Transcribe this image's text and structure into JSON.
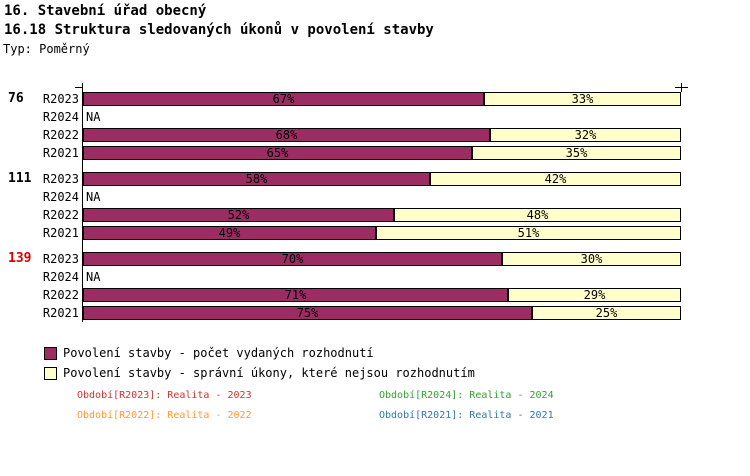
{
  "header": {
    "title_line1": "16. Stavební úřad obecný",
    "title_line2": "16.18 Struktura sledovaných úkonů v povolení stavby",
    "subtitle": "Typ: Poměrný"
  },
  "chart_data": {
    "type": "bar",
    "orientation": "horizontal",
    "stacked": true,
    "unit": "%",
    "x_range": [
      0,
      100
    ],
    "grid": false,
    "na_label": "NA",
    "series": [
      {
        "name": "Povolení stavby - počet vydaných rozhodnutí",
        "color": "#9C2D64"
      },
      {
        "name": "Povolení stavby - správní úkony, které nejsou rozhodnutím",
        "color": "#FFFFCC"
      }
    ],
    "groups": [
      {
        "label": "76",
        "label_color": "#000000",
        "rows": [
          {
            "period": "R2023",
            "values": [
              67,
              33
            ]
          },
          {
            "period": "R2024",
            "values": null
          },
          {
            "period": "R2022",
            "values": [
              68,
              32
            ]
          },
          {
            "period": "R2021",
            "values": [
              65,
              35
            ]
          }
        ]
      },
      {
        "label": "111",
        "label_color": "#000000",
        "rows": [
          {
            "period": "R2023",
            "values": [
              58,
              42
            ]
          },
          {
            "period": "R2024",
            "values": null
          },
          {
            "period": "R2022",
            "values": [
              52,
              48
            ]
          },
          {
            "period": "R2021",
            "values": [
              49,
              51
            ]
          }
        ]
      },
      {
        "label": "139",
        "label_color": "#DD0000",
        "rows": [
          {
            "period": "R2023",
            "values": [
              70,
              30
            ]
          },
          {
            "period": "R2024",
            "values": null
          },
          {
            "period": "R2022",
            "values": [
              71,
              29
            ]
          },
          {
            "period": "R2021",
            "values": [
              75,
              25
            ]
          }
        ]
      }
    ]
  },
  "footer": {
    "items": [
      {
        "text": "Období[R2023]: Realita - 2023",
        "color": "#CC3333"
      },
      {
        "text": "Období[R2024]: Realita - 2024",
        "color": "#33A033"
      },
      {
        "text": "Období[R2022]: Realita - 2022",
        "color": "#FF9933"
      },
      {
        "text": "Období[R2021]: Realita - 2021",
        "color": "#3377AA"
      }
    ]
  }
}
